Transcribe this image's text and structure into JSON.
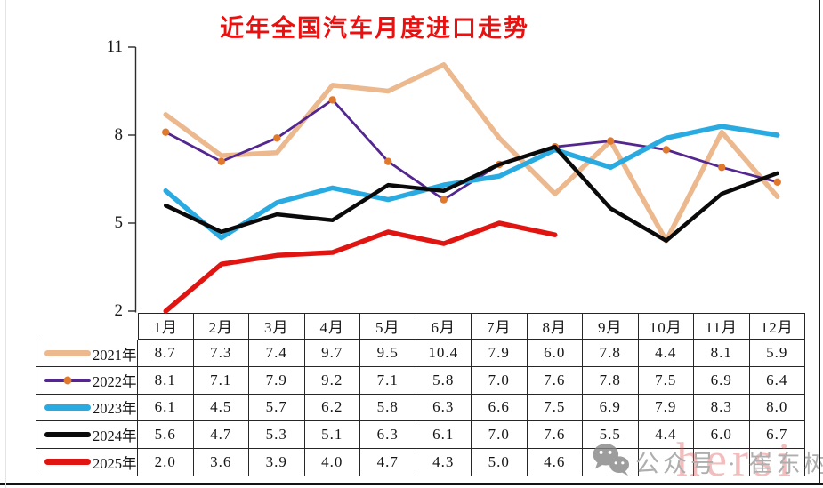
{
  "title": {
    "text": "近年全国汽车月度进口走势",
    "color": "#EA1010"
  },
  "chart_data": {
    "type": "line",
    "title": "近年全国汽车月度进口走势",
    "categories": [
      "1月",
      "2月",
      "3月",
      "4月",
      "5月",
      "6月",
      "7月",
      "8月",
      "9月",
      "10月",
      "11月",
      "12月"
    ],
    "series": [
      {
        "name": "2021年",
        "color": "#ECB88E",
        "line_width": 5.5,
        "marker": false,
        "values": [
          8.7,
          7.3,
          7.4,
          9.7,
          9.5,
          10.4,
          7.9,
          6.0,
          7.8,
          4.4,
          8.1,
          5.9
        ]
      },
      {
        "name": "2022年",
        "color": "#53278F",
        "line_width": 2.8,
        "marker": true,
        "marker_color": "#E0792C",
        "values": [
          8.1,
          7.1,
          7.9,
          9.2,
          7.1,
          5.8,
          7.0,
          7.6,
          7.8,
          7.5,
          6.9,
          6.4
        ]
      },
      {
        "name": "2023年",
        "color": "#29ABE2",
        "line_width": 5.5,
        "marker": false,
        "values": [
          6.1,
          4.5,
          5.7,
          6.2,
          5.8,
          6.3,
          6.6,
          7.5,
          6.9,
          7.9,
          8.3,
          8.0
        ]
      },
      {
        "name": "2024年",
        "color": "#0A0A0A",
        "line_width": 4.5,
        "marker": false,
        "values": [
          5.6,
          4.7,
          5.3,
          5.1,
          6.3,
          6.1,
          7.0,
          7.6,
          5.5,
          4.4,
          6.0,
          6.7
        ]
      },
      {
        "name": "2025年",
        "color": "#E01512",
        "line_width": 5.5,
        "marker": false,
        "values": [
          2.0,
          3.6,
          3.9,
          4.0,
          4.7,
          4.3,
          5.0,
          4.6,
          null,
          null,
          null,
          null
        ]
      }
    ],
    "ylim": [
      2,
      11
    ],
    "yticks": [
      11,
      8,
      5,
      2
    ],
    "grid": false,
    "xlabel": "",
    "ylabel": "",
    "legend_position": "table-rows-left",
    "value_decimals": 1
  },
  "watermark": {
    "platform_label": "公众号",
    "separator": "·",
    "author": "崔东树",
    "overlay_text": "hersi"
  }
}
